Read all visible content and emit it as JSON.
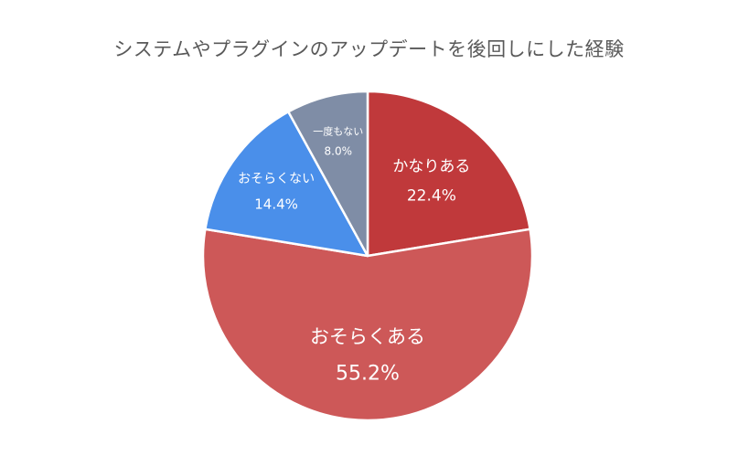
{
  "chart_data": {
    "type": "pie",
    "title": "システムやプラグインのアップデートを後回しにした経験",
    "slices": [
      {
        "label": "かなりある",
        "value": 22.4,
        "value_label": "22.4%",
        "color": "#c0393b"
      },
      {
        "label": "おそらくある",
        "value": 55.2,
        "value_label": "55.2%",
        "color": "#cd5858"
      },
      {
        "label": "おそらくない",
        "value": 14.4,
        "value_label": "14.4%",
        "color": "#4a8fea"
      },
      {
        "label": "一度もない",
        "value": 8.0,
        "value_label": "8.0%",
        "color": "#7f8da6"
      }
    ],
    "start_angle": "12 o'clock",
    "direction": "clockwise",
    "legend": "none"
  }
}
